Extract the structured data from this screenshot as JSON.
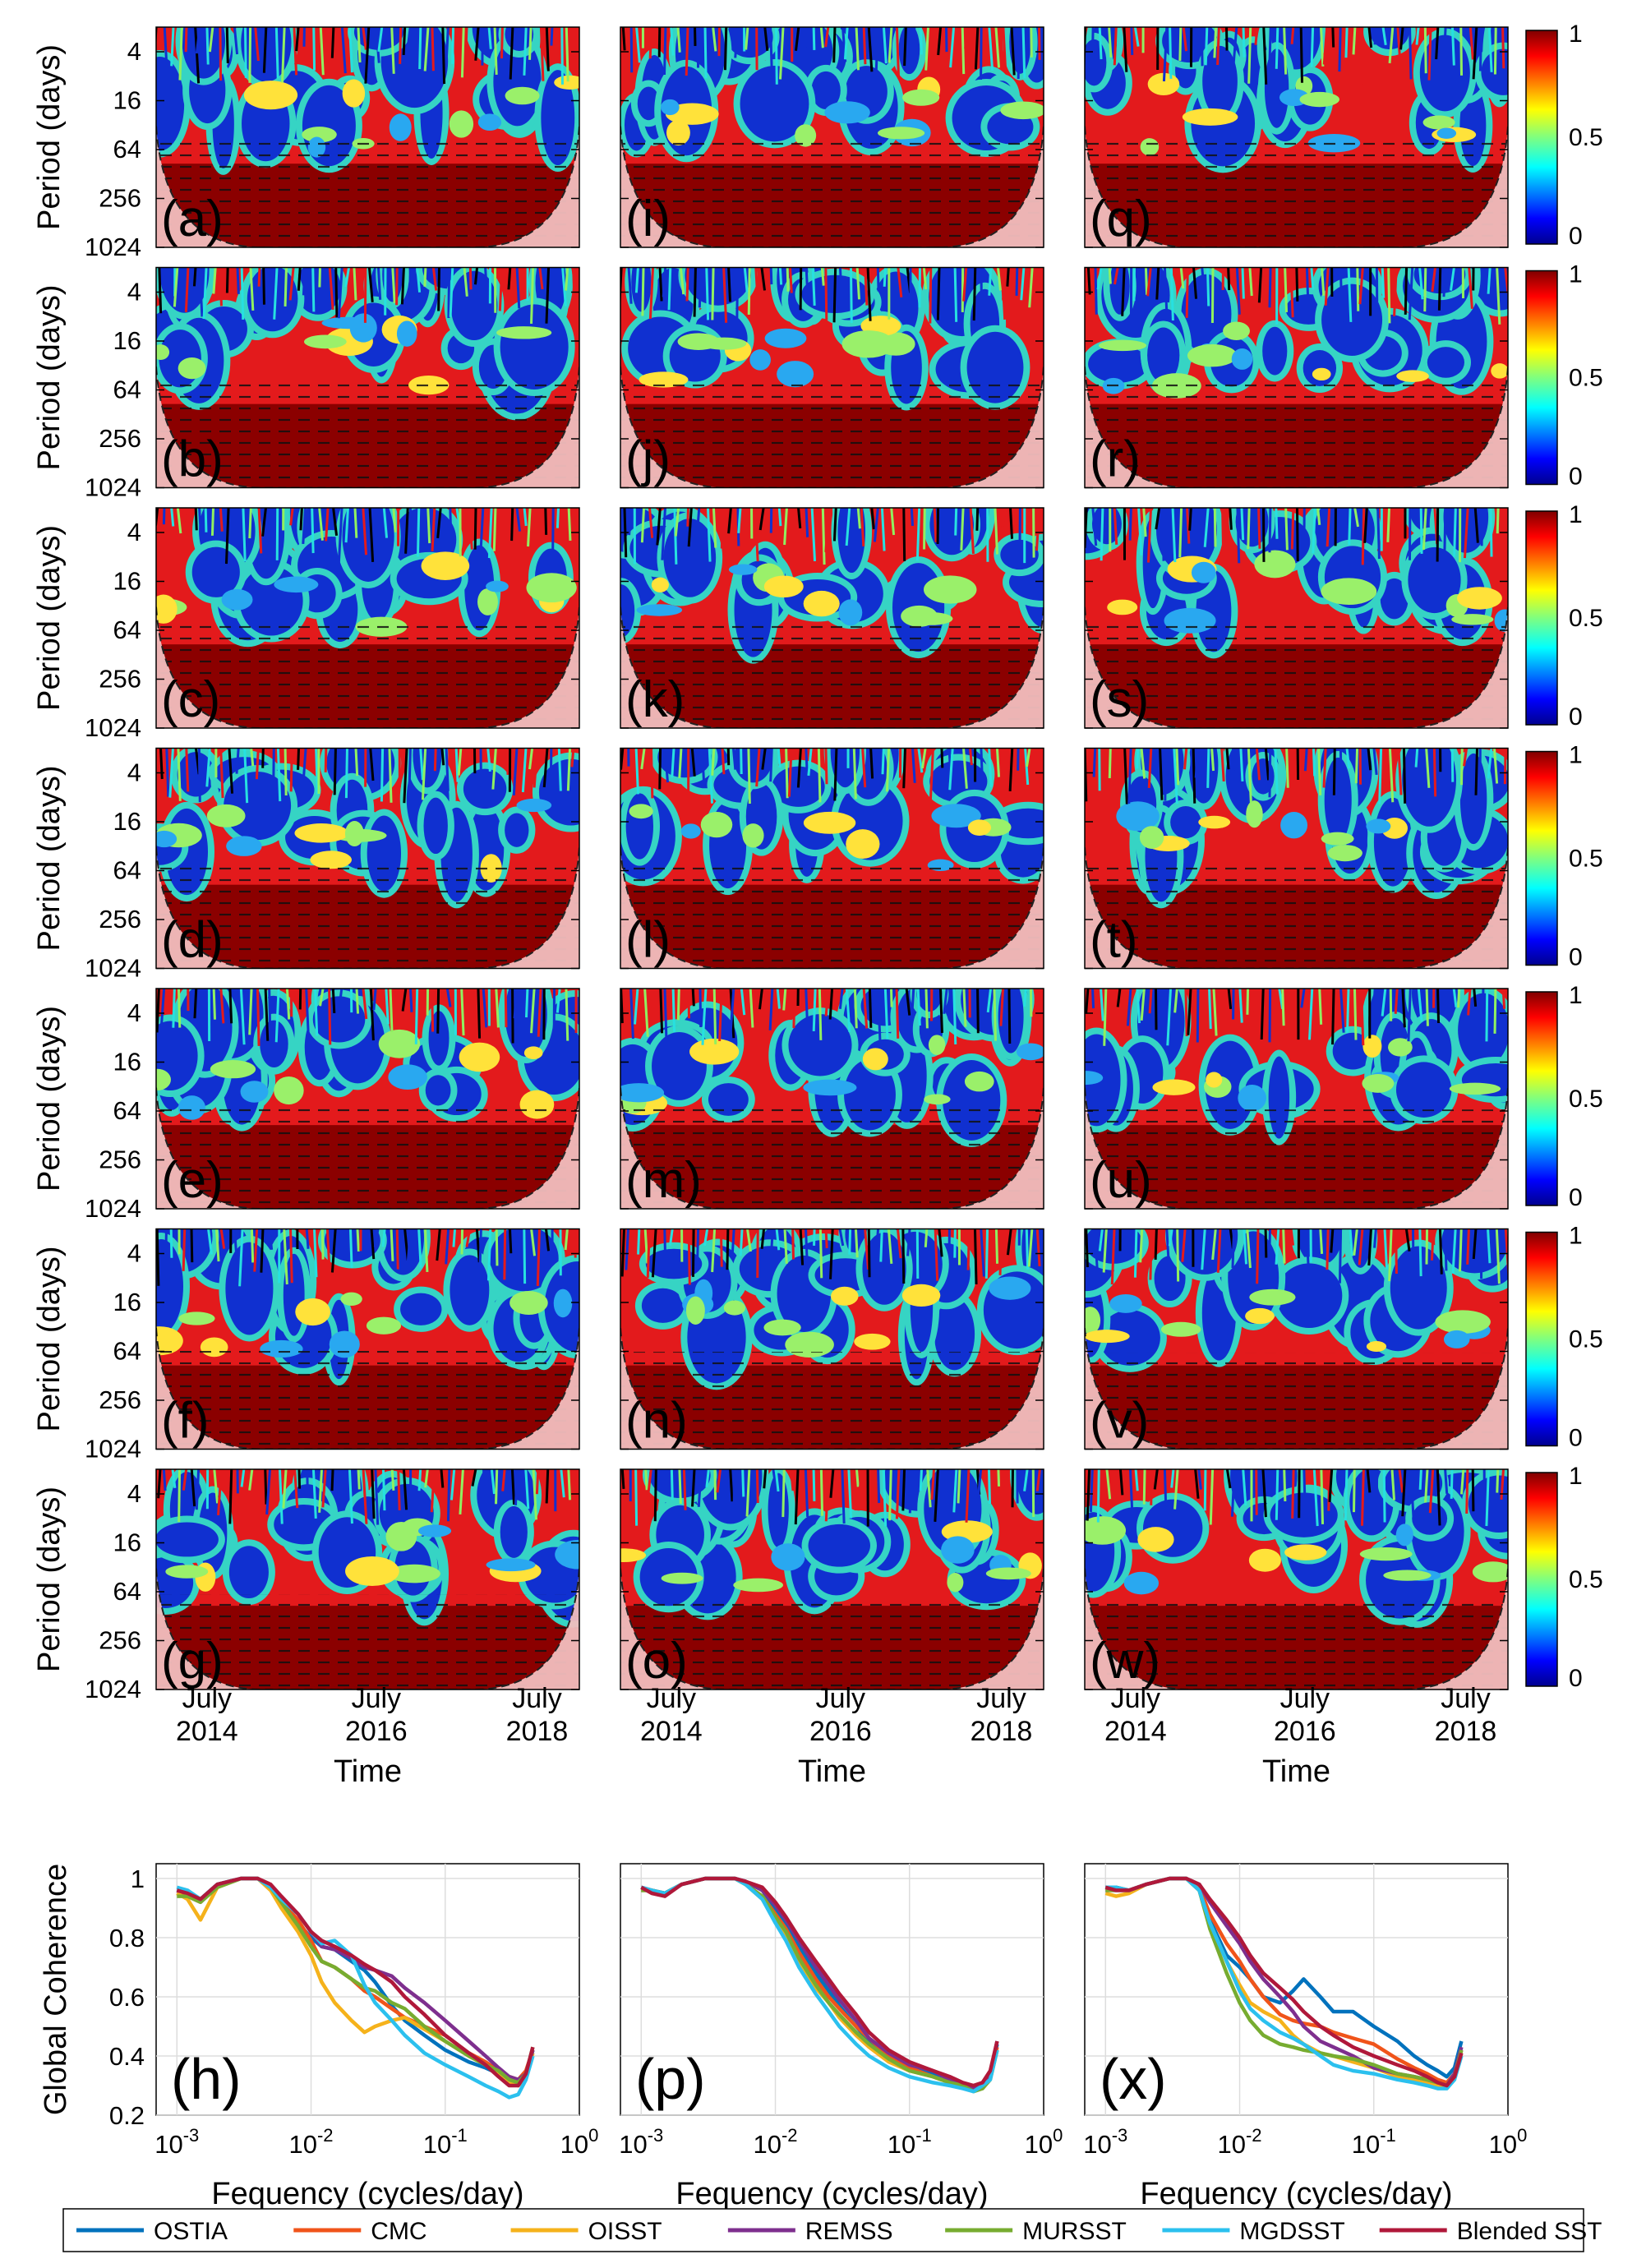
{
  "chart_data": [
    {
      "type": "heatmap",
      "description_role": "wavelet coherence panels",
      "y_axis_label": "Period (days)",
      "y_ticks": [
        "4",
        "16",
        "64",
        "256",
        "1024"
      ],
      "x_axis_label": "Time",
      "x_ticks": [
        {
          "month": "July",
          "year": "2014"
        },
        {
          "month": "July",
          "year": "2016"
        },
        {
          "month": "July",
          "year": "2018"
        }
      ],
      "colorbar": {
        "ticks": [
          "0",
          "0.5",
          "1"
        ],
        "range": [
          0,
          1
        ],
        "colormap": "jet"
      },
      "panels": [
        {
          "label": "(a)",
          "row": 1,
          "col": 1
        },
        {
          "label": "(i)",
          "row": 1,
          "col": 2
        },
        {
          "label": "(q)",
          "row": 1,
          "col": 3
        },
        {
          "label": "(b)",
          "row": 2,
          "col": 1
        },
        {
          "label": "(j)",
          "row": 2,
          "col": 2
        },
        {
          "label": "(r)",
          "row": 2,
          "col": 3
        },
        {
          "label": "(c)",
          "row": 3,
          "col": 1
        },
        {
          "label": "(k)",
          "row": 3,
          "col": 2
        },
        {
          "label": "(s)",
          "row": 3,
          "col": 3
        },
        {
          "label": "(d)",
          "row": 4,
          "col": 1
        },
        {
          "label": "(l)",
          "row": 4,
          "col": 2
        },
        {
          "label": "(t)",
          "row": 4,
          "col": 3
        },
        {
          "label": "(e)",
          "row": 5,
          "col": 1
        },
        {
          "label": "(m)",
          "row": 5,
          "col": 2
        },
        {
          "label": "(u)",
          "row": 5,
          "col": 3
        },
        {
          "label": "(f)",
          "row": 6,
          "col": 1
        },
        {
          "label": "(n)",
          "row": 6,
          "col": 2
        },
        {
          "label": "(v)",
          "row": 6,
          "col": 3
        },
        {
          "label": "(g)",
          "row": 7,
          "col": 1
        },
        {
          "label": "(o)",
          "row": 7,
          "col": 2
        },
        {
          "label": "(w)",
          "row": 7,
          "col": 3
        }
      ]
    },
    {
      "type": "line",
      "description_role": "global coherence panels",
      "ylabel": "Global Coherence",
      "xlabel": "Fequency (cycles/day)",
      "x_scale": "log",
      "xlim": [
        0.0007,
        1
      ],
      "ylim": [
        0.2,
        1.05
      ],
      "y_ticks": [
        "0.2",
        "0.4",
        "0.6",
        "0.8",
        "1"
      ],
      "x_ticks": [
        {
          "base": "10",
          "exp": "-3"
        },
        {
          "base": "10",
          "exp": "-2"
        },
        {
          "base": "10",
          "exp": "-1"
        },
        {
          "base": "10",
          "exp": "0"
        }
      ],
      "grid": true,
      "x": [
        0.001,
        0.0012,
        0.0015,
        0.002,
        0.003,
        0.004,
        0.005,
        0.006,
        0.008,
        0.01,
        0.012,
        0.015,
        0.02,
        0.025,
        0.03,
        0.04,
        0.05,
        0.07,
        0.1,
        0.15,
        0.2,
        0.25,
        0.3,
        0.35,
        0.4,
        0.45
      ],
      "panels": [
        {
          "label": "(h)",
          "series": [
            {
              "name": "OSTIA",
              "values": [
                0.96,
                0.95,
                0.93,
                0.98,
                1.0,
                1.0,
                0.97,
                0.92,
                0.85,
                0.8,
                0.77,
                0.76,
                0.72,
                0.69,
                0.65,
                0.57,
                0.52,
                0.47,
                0.42,
                0.38,
                0.36,
                0.34,
                0.31,
                0.3,
                0.33,
                0.42
              ]
            },
            {
              "name": "CMC",
              "values": [
                0.95,
                0.94,
                0.92,
                0.98,
                1.0,
                1.0,
                0.97,
                0.92,
                0.86,
                0.79,
                0.72,
                0.7,
                0.66,
                0.62,
                0.6,
                0.56,
                0.53,
                0.5,
                0.47,
                0.41,
                0.38,
                0.35,
                0.33,
                0.32,
                0.35,
                0.42
              ]
            },
            {
              "name": "OISST",
              "values": [
                0.95,
                0.93,
                0.86,
                0.97,
                1.0,
                1.0,
                0.96,
                0.9,
                0.82,
                0.74,
                0.65,
                0.58,
                0.52,
                0.48,
                0.5,
                0.52,
                0.53,
                0.49,
                0.45,
                0.4,
                0.37,
                0.34,
                0.31,
                0.3,
                0.33,
                0.41
              ]
            },
            {
              "name": "REMSS",
              "values": [
                0.96,
                0.95,
                0.93,
                0.98,
                1.0,
                1.0,
                0.97,
                0.93,
                0.88,
                0.82,
                0.77,
                0.76,
                0.73,
                0.7,
                0.69,
                0.67,
                0.63,
                0.58,
                0.52,
                0.45,
                0.4,
                0.36,
                0.33,
                0.32,
                0.34,
                0.42
              ]
            },
            {
              "name": "MURSST",
              "values": [
                0.94,
                0.94,
                0.92,
                0.97,
                1.0,
                1.0,
                0.97,
                0.92,
                0.84,
                0.77,
                0.72,
                0.7,
                0.66,
                0.63,
                0.62,
                0.58,
                0.56,
                0.5,
                0.45,
                0.4,
                0.37,
                0.35,
                0.32,
                0.31,
                0.34,
                0.43
              ]
            },
            {
              "name": "MGDSST",
              "values": [
                0.97,
                0.96,
                0.93,
                0.98,
                1.0,
                1.0,
                0.97,
                0.93,
                0.88,
                0.82,
                0.78,
                0.79,
                0.74,
                0.64,
                0.58,
                0.52,
                0.47,
                0.41,
                0.37,
                0.33,
                0.3,
                0.28,
                0.26,
                0.27,
                0.32,
                0.4
              ]
            },
            {
              "name": "Blended SST",
              "values": [
                0.96,
                0.95,
                0.93,
                0.98,
                1.0,
                1.0,
                0.98,
                0.94,
                0.88,
                0.82,
                0.79,
                0.77,
                0.74,
                0.71,
                0.69,
                0.65,
                0.6,
                0.54,
                0.47,
                0.41,
                0.37,
                0.33,
                0.3,
                0.3,
                0.34,
                0.43
              ]
            }
          ]
        },
        {
          "label": "(p)",
          "series": [
            {
              "name": "OSTIA",
              "values": [
                0.96,
                0.96,
                0.95,
                0.98,
                1.0,
                1.0,
                1.0,
                0.99,
                0.96,
                0.9,
                0.85,
                0.77,
                0.68,
                0.62,
                0.57,
                0.5,
                0.45,
                0.4,
                0.36,
                0.34,
                0.32,
                0.3,
                0.29,
                0.3,
                0.33,
                0.44
              ]
            },
            {
              "name": "CMC",
              "values": [
                0.97,
                0.96,
                0.95,
                0.98,
                1.0,
                1.0,
                1.0,
                0.98,
                0.94,
                0.88,
                0.83,
                0.75,
                0.66,
                0.6,
                0.56,
                0.5,
                0.46,
                0.4,
                0.36,
                0.33,
                0.31,
                0.3,
                0.29,
                0.3,
                0.33,
                0.43
              ]
            },
            {
              "name": "OISST",
              "values": [
                0.96,
                0.96,
                0.95,
                0.98,
                1.0,
                1.0,
                1.0,
                0.98,
                0.93,
                0.86,
                0.8,
                0.72,
                0.63,
                0.58,
                0.53,
                0.47,
                0.43,
                0.38,
                0.35,
                0.33,
                0.31,
                0.3,
                0.29,
                0.3,
                0.33,
                0.42
              ]
            },
            {
              "name": "REMSS",
              "values": [
                0.97,
                0.96,
                0.95,
                0.98,
                1.0,
                1.0,
                1.0,
                0.99,
                0.96,
                0.91,
                0.86,
                0.79,
                0.7,
                0.64,
                0.59,
                0.52,
                0.46,
                0.41,
                0.37,
                0.35,
                0.32,
                0.3,
                0.29,
                0.31,
                0.34,
                0.45
              ]
            },
            {
              "name": "MURSST",
              "values": [
                0.96,
                0.96,
                0.95,
                0.98,
                1.0,
                1.0,
                1.0,
                0.98,
                0.94,
                0.87,
                0.82,
                0.73,
                0.64,
                0.58,
                0.54,
                0.48,
                0.44,
                0.39,
                0.35,
                0.33,
                0.31,
                0.3,
                0.28,
                0.29,
                0.32,
                0.42
              ]
            },
            {
              "name": "MGDSST",
              "values": [
                0.97,
                0.96,
                0.95,
                0.98,
                1.0,
                1.0,
                1.0,
                0.98,
                0.93,
                0.85,
                0.79,
                0.7,
                0.61,
                0.55,
                0.5,
                0.44,
                0.4,
                0.36,
                0.33,
                0.31,
                0.3,
                0.29,
                0.28,
                0.3,
                0.32,
                0.42
              ]
            },
            {
              "name": "Blended SST",
              "values": [
                0.97,
                0.95,
                0.94,
                0.98,
                1.0,
                1.0,
                1.0,
                0.99,
                0.97,
                0.92,
                0.87,
                0.8,
                0.72,
                0.66,
                0.61,
                0.54,
                0.48,
                0.42,
                0.38,
                0.35,
                0.33,
                0.31,
                0.3,
                0.31,
                0.35,
                0.45
              ]
            }
          ]
        },
        {
          "label": "(x)",
          "series": [
            {
              "name": "OSTIA",
              "values": [
                0.97,
                0.97,
                0.96,
                0.98,
                1.0,
                1.0,
                0.97,
                0.86,
                0.74,
                0.7,
                0.66,
                0.6,
                0.58,
                0.62,
                0.66,
                0.6,
                0.55,
                0.55,
                0.5,
                0.45,
                0.4,
                0.37,
                0.35,
                0.33,
                0.36,
                0.45
              ]
            },
            {
              "name": "CMC",
              "values": [
                0.97,
                0.97,
                0.96,
                0.98,
                1.0,
                1.0,
                0.97,
                0.88,
                0.78,
                0.72,
                0.66,
                0.6,
                0.54,
                0.52,
                0.51,
                0.5,
                0.48,
                0.46,
                0.44,
                0.39,
                0.36,
                0.34,
                0.32,
                0.31,
                0.34,
                0.42
              ]
            },
            {
              "name": "OISST",
              "values": [
                0.95,
                0.94,
                0.95,
                0.98,
                1.0,
                1.0,
                0.96,
                0.85,
                0.72,
                0.64,
                0.58,
                0.55,
                0.52,
                0.47,
                0.44,
                0.41,
                0.4,
                0.38,
                0.36,
                0.33,
                0.32,
                0.31,
                0.3,
                0.3,
                0.33,
                0.41
              ]
            },
            {
              "name": "REMSS",
              "values": [
                0.96,
                0.96,
                0.96,
                0.98,
                1.0,
                1.0,
                0.98,
                0.92,
                0.84,
                0.78,
                0.72,
                0.66,
                0.6,
                0.55,
                0.5,
                0.45,
                0.43,
                0.4,
                0.36,
                0.34,
                0.33,
                0.32,
                0.31,
                0.3,
                0.34,
                0.43
              ]
            },
            {
              "name": "MURSST",
              "values": [
                0.96,
                0.96,
                0.96,
                0.98,
                1.0,
                1.0,
                0.96,
                0.83,
                0.68,
                0.58,
                0.52,
                0.47,
                0.44,
                0.43,
                0.42,
                0.41,
                0.4,
                0.39,
                0.37,
                0.34,
                0.33,
                0.32,
                0.31,
                0.3,
                0.33,
                0.42
              ]
            },
            {
              "name": "MGDSST",
              "values": [
                0.97,
                0.97,
                0.96,
                0.98,
                1.0,
                1.0,
                0.96,
                0.85,
                0.72,
                0.62,
                0.56,
                0.52,
                0.48,
                0.46,
                0.44,
                0.4,
                0.37,
                0.35,
                0.34,
                0.32,
                0.31,
                0.3,
                0.29,
                0.29,
                0.32,
                0.4
              ]
            },
            {
              "name": "Blended SST",
              "values": [
                0.97,
                0.96,
                0.96,
                0.98,
                1.0,
                1.0,
                0.98,
                0.93,
                0.86,
                0.8,
                0.74,
                0.68,
                0.63,
                0.59,
                0.55,
                0.5,
                0.47,
                0.43,
                0.4,
                0.37,
                0.35,
                0.33,
                0.31,
                0.3,
                0.33,
                0.41
              ]
            }
          ]
        }
      ]
    }
  ],
  "legend": {
    "placement": "bottom",
    "items": [
      {
        "name": "OSTIA",
        "color": "#0072BD"
      },
      {
        "name": "CMC",
        "color": "#F0541A"
      },
      {
        "name": "OISST",
        "color": "#F5B21B"
      },
      {
        "name": "REMSS",
        "color": "#7E2F8E"
      },
      {
        "name": "MURSST",
        "color": "#77AC30"
      },
      {
        "name": "MGDSST",
        "color": "#2BC0EE"
      },
      {
        "name": "Blended SST",
        "color": "#B0183A"
      }
    ]
  }
}
